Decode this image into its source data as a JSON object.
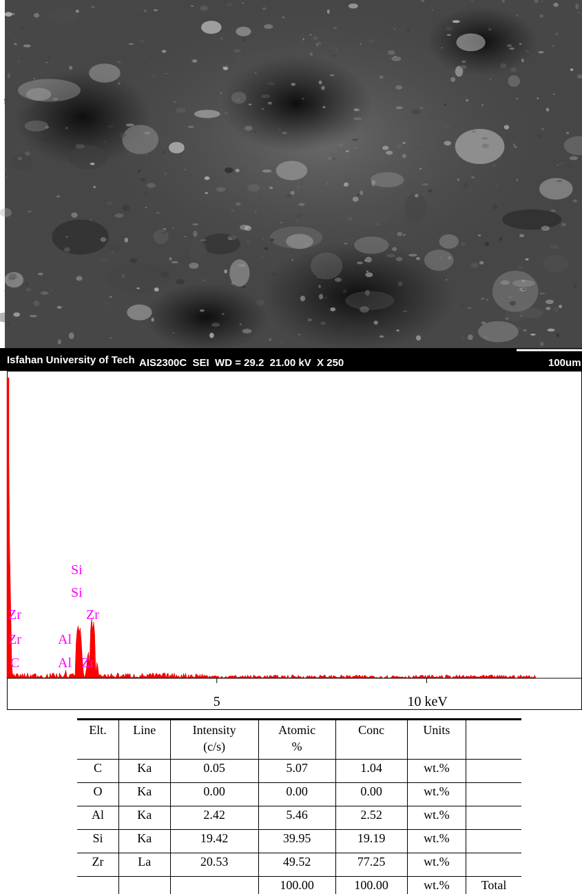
{
  "sem": {
    "caption": {
      "institution": "Isfahan University of Tech",
      "instrument": "AIS2300C  SEI  WD = 29.2  21.00 kV  X 250",
      "scale": "100um"
    }
  },
  "spectrum": {
    "xlim": [
      0,
      13.7
    ],
    "xticks": [
      5,
      {
        "value": 10,
        "label": "10 keV"
      }
    ],
    "element_labels": [
      "Si",
      "Si",
      "Zr",
      "Zr",
      "Zr",
      "Al",
      "C",
      "Al",
      "Zr"
    ]
  },
  "table": {
    "header": [
      [
        "Elt.",
        "Line",
        "Intensity",
        "Atomic",
        "Conc",
        "Units",
        null
      ],
      [
        null,
        null,
        "(c/s)",
        "%",
        null,
        null,
        null
      ]
    ],
    "rows": [
      [
        "C",
        "Ka",
        "0.05",
        "5.07",
        "1.04",
        "wt.%",
        null
      ],
      [
        "O",
        "Ka",
        "0.00",
        "0.00",
        "0.00",
        "wt.%",
        null
      ],
      [
        "Al",
        "Ka",
        "2.42",
        "5.46",
        "2.52",
        "wt.%",
        null
      ],
      [
        "Si",
        "Ka",
        "19.42",
        "39.95",
        "19.19",
        "wt.%",
        null
      ],
      [
        "Zr",
        "La",
        "20.53",
        "49.52",
        "77.25",
        "wt.%",
        null
      ],
      [
        null,
        null,
        "100.00",
        "100.00",
        "wt.%",
        "Total"
      ]
    ]
  }
}
